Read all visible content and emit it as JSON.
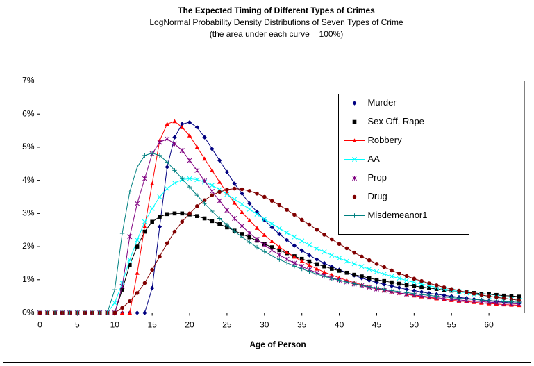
{
  "chart_data": {
    "type": "line",
    "title": "The Expected Timing of Different Types of Crimes",
    "subtitle": "LogNormal Probability Density Distributions of Seven Types of Crime",
    "note": "(the area under each curve = 100%)",
    "x_label": "Age of Person",
    "x": [
      0,
      1,
      2,
      3,
      4,
      5,
      6,
      7,
      8,
      9,
      10,
      11,
      12,
      13,
      14,
      15,
      16,
      17,
      18,
      19,
      20,
      21,
      22,
      23,
      24,
      25,
      26,
      27,
      28,
      29,
      30,
      31,
      32,
      33,
      34,
      35,
      36,
      37,
      38,
      39,
      40,
      41,
      42,
      43,
      44,
      45,
      46,
      47,
      48,
      49,
      50,
      51,
      52,
      53,
      54,
      55,
      56,
      57,
      58,
      59,
      60,
      61,
      62,
      63,
      64
    ],
    "xlim": [
      0,
      65
    ],
    "xticks": [
      0,
      5,
      10,
      15,
      20,
      25,
      30,
      35,
      40,
      45,
      50,
      55,
      60
    ],
    "ylim": [
      0,
      7
    ],
    "yticks": [
      {
        "value": 0,
        "label": "0%"
      },
      {
        "value": 1,
        "label": "1%"
      },
      {
        "value": 2,
        "label": "2%"
      },
      {
        "value": 3,
        "label": "3%"
      },
      {
        "value": 4,
        "label": "4%"
      },
      {
        "value": 5,
        "label": "5%"
      },
      {
        "value": 6,
        "label": "6%"
      },
      {
        "value": 7,
        "label": "7%"
      }
    ],
    "grid": false,
    "legend": "upper right",
    "series": [
      {
        "name": "Murder",
        "color": "#000080",
        "marker": "diamond",
        "values": [
          0,
          0,
          0,
          0,
          0,
          0,
          0,
          0,
          0,
          0,
          0,
          0,
          0,
          0,
          0,
          0.75,
          2.6,
          4.4,
          5.3,
          5.7,
          5.75,
          5.6,
          5.3,
          4.95,
          4.6,
          4.25,
          3.9,
          3.6,
          3.3,
          3.05,
          2.8,
          2.58,
          2.38,
          2.2,
          2.03,
          1.88,
          1.74,
          1.61,
          1.5,
          1.39,
          1.3,
          1.21,
          1.13,
          1.05,
          0.98,
          0.92,
          0.86,
          0.81,
          0.76,
          0.71,
          0.67,
          0.63,
          0.59,
          0.56,
          0.53,
          0.5,
          0.47,
          0.44,
          0.41,
          0.39,
          0.36,
          0.34,
          0.32,
          0.3,
          0.28
        ]
      },
      {
        "name": "Sex Off, Rape",
        "color": "#000000",
        "marker": "square",
        "values": [
          0,
          0,
          0,
          0,
          0,
          0,
          0,
          0,
          0,
          0,
          0,
          0.7,
          1.45,
          2.0,
          2.45,
          2.75,
          2.9,
          2.98,
          3.0,
          3.0,
          2.97,
          2.92,
          2.85,
          2.77,
          2.68,
          2.58,
          2.48,
          2.38,
          2.28,
          2.18,
          2.08,
          1.98,
          1.89,
          1.8,
          1.71,
          1.63,
          1.55,
          1.47,
          1.4,
          1.33,
          1.27,
          1.21,
          1.15,
          1.1,
          1.05,
          1.0,
          0.96,
          0.92,
          0.88,
          0.84,
          0.81,
          0.78,
          0.75,
          0.72,
          0.69,
          0.67,
          0.64,
          0.62,
          0.6,
          0.58,
          0.56,
          0.54,
          0.52,
          0.51,
          0.49
        ]
      },
      {
        "name": "Robbery",
        "color": "#FF0000",
        "marker": "triangle",
        "values": [
          0,
          0,
          0,
          0,
          0,
          0,
          0,
          0,
          0,
          0,
          0,
          0,
          0,
          1.2,
          2.6,
          3.9,
          5.2,
          5.7,
          5.78,
          5.6,
          5.35,
          5.0,
          4.65,
          4.3,
          3.95,
          3.62,
          3.32,
          3.04,
          2.79,
          2.56,
          2.35,
          2.16,
          1.99,
          1.83,
          1.69,
          1.56,
          1.44,
          1.33,
          1.23,
          1.14,
          1.06,
          0.98,
          0.91,
          0.85,
          0.79,
          0.74,
          0.69,
          0.64,
          0.6,
          0.56,
          0.52,
          0.49,
          0.46,
          0.43,
          0.41,
          0.38,
          0.36,
          0.34,
          0.32,
          0.3,
          0.28,
          0.27,
          0.25,
          0.24,
          0.23
        ]
      },
      {
        "name": "AA",
        "color": "#00FFFF",
        "marker": "x",
        "values": [
          0,
          0,
          0,
          0,
          0,
          0,
          0,
          0,
          0,
          0,
          0.3,
          0.9,
          1.6,
          2.2,
          2.75,
          3.15,
          3.5,
          3.75,
          3.92,
          4.02,
          4.05,
          4.02,
          3.95,
          3.85,
          3.72,
          3.58,
          3.43,
          3.28,
          3.13,
          2.98,
          2.83,
          2.69,
          2.55,
          2.42,
          2.29,
          2.17,
          2.05,
          1.94,
          1.84,
          1.74,
          1.65,
          1.56,
          1.48,
          1.4,
          1.32,
          1.24,
          1.17,
          1.1,
          1.04,
          0.98,
          0.92,
          0.87,
          0.82,
          0.77,
          0.72,
          0.68,
          0.64,
          0.6,
          0.56,
          0.53,
          0.5,
          0.47,
          0.44,
          0.41,
          0.38
        ]
      },
      {
        "name": "Prop",
        "color": "#800080",
        "marker": "asterisk",
        "values": [
          0,
          0,
          0,
          0,
          0,
          0,
          0,
          0,
          0,
          0,
          0,
          0.8,
          2.3,
          3.3,
          4.05,
          4.8,
          5.15,
          5.25,
          5.1,
          4.9,
          4.6,
          4.3,
          3.98,
          3.67,
          3.38,
          3.1,
          2.85,
          2.62,
          2.41,
          2.22,
          2.05,
          1.89,
          1.75,
          1.62,
          1.5,
          1.4,
          1.3,
          1.21,
          1.13,
          1.06,
          0.99,
          0.93,
          0.87,
          0.82,
          0.77,
          0.72,
          0.68,
          0.64,
          0.6,
          0.57,
          0.54,
          0.51,
          0.48,
          0.46,
          0.43,
          0.41,
          0.39,
          0.37,
          0.35,
          0.34,
          0.32,
          0.31,
          0.29,
          0.28,
          0.27
        ]
      },
      {
        "name": "Drug",
        "color": "#800000",
        "marker": "circle",
        "values": [
          0,
          0,
          0,
          0,
          0,
          0,
          0,
          0,
          0,
          0,
          0,
          0.15,
          0.35,
          0.6,
          0.9,
          1.3,
          1.7,
          2.1,
          2.45,
          2.75,
          3.0,
          3.22,
          3.4,
          3.55,
          3.65,
          3.72,
          3.75,
          3.73,
          3.68,
          3.6,
          3.5,
          3.38,
          3.25,
          3.11,
          2.96,
          2.81,
          2.66,
          2.51,
          2.36,
          2.22,
          2.08,
          1.95,
          1.82,
          1.7,
          1.59,
          1.48,
          1.38,
          1.28,
          1.19,
          1.11,
          1.03,
          0.96,
          0.89,
          0.83,
          0.77,
          0.72,
          0.67,
          0.62,
          0.58,
          0.54,
          0.5,
          0.47,
          0.44,
          0.41,
          0.38
        ]
      },
      {
        "name": "Misdemeanor1",
        "color": "#008080",
        "marker": "plus",
        "values": [
          0,
          0,
          0,
          0,
          0,
          0,
          0,
          0,
          0,
          0,
          0.7,
          2.4,
          3.65,
          4.4,
          4.75,
          4.82,
          4.75,
          4.55,
          4.3,
          4.05,
          3.8,
          3.55,
          3.3,
          3.07,
          2.85,
          2.65,
          2.46,
          2.29,
          2.13,
          1.98,
          1.85,
          1.72,
          1.61,
          1.51,
          1.41,
          1.33,
          1.25,
          1.17,
          1.1,
          1.04,
          0.98,
          0.93,
          0.88,
          0.83,
          0.79,
          0.75,
          0.71,
          0.67,
          0.64,
          0.61,
          0.58,
          0.55,
          0.53,
          0.5,
          0.48,
          0.46,
          0.44,
          0.42,
          0.4,
          0.39,
          0.37,
          0.36,
          0.34,
          0.33,
          0.32
        ]
      }
    ]
  }
}
